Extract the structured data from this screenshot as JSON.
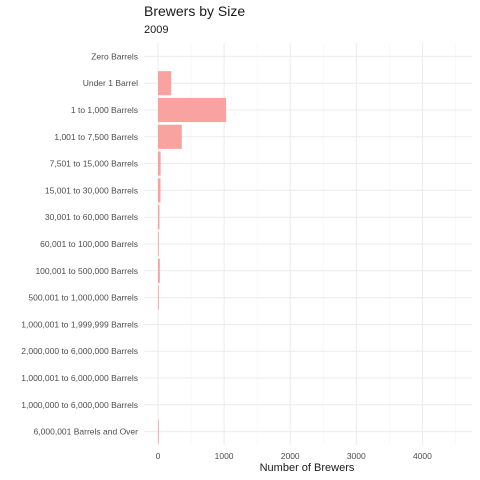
{
  "chart_data": {
    "type": "bar",
    "orientation": "horizontal",
    "title": "Brewers by Size",
    "subtitle": "2009",
    "xlabel": "Number of Brewers",
    "ylabel": "",
    "xlim": [
      0,
      4700
    ],
    "x_ticks": [
      0,
      1000,
      2000,
      3000,
      4000
    ],
    "x_tick_labels": [
      "0",
      "1000",
      "2000",
      "3000",
      "4000"
    ],
    "grid": true,
    "bar_color": "#f8a3a0",
    "categories": [
      "Zero Barrels",
      "Under 1 Barrel",
      "1 to 1,000 Barrels",
      "1,001 to 7,500 Barrels",
      "7,501 to 15,000 Barrels",
      "15,001 to 30,000 Barrels",
      "30,001 to 60,000 Barrels",
      "60,001 to 100,000 Barrels",
      "100,001 to 500,000 Barrels",
      "500,001 to 1,000,000 Barrels",
      "1,000,001 to 1,999,999 Barrels",
      "2,000,000 to 6,000,000 Barrels",
      "1,000,001 to 6,000,000 Barrels",
      "1,000,000 to 6,000,000 Barrels",
      "6,000,001 Barrels and Over"
    ],
    "values": [
      0,
      200,
      1030,
      360,
      40,
      38,
      22,
      10,
      28,
      8,
      0,
      0,
      0,
      0,
      5
    ]
  }
}
